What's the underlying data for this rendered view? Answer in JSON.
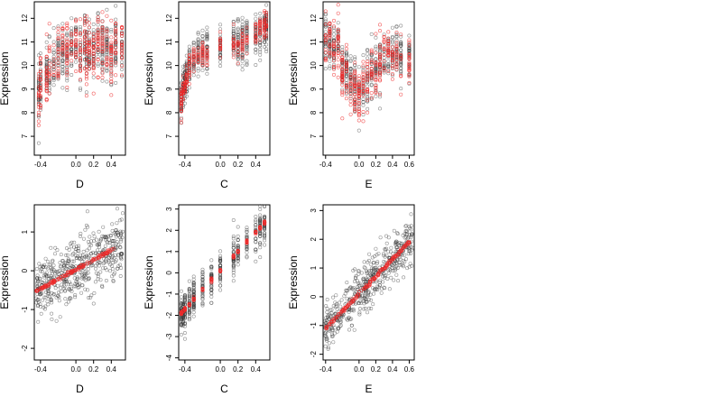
{
  "colors": {
    "observed": "#333333",
    "fitted": "#ee2a2a",
    "axis": "#000000"
  },
  "chart_data": [
    {
      "type": "scatter",
      "xlabel": "D",
      "ylabel": "Expression",
      "xlim": [
        -0.47,
        0.56
      ],
      "ylim": [
        6.2,
        12.7
      ],
      "xticks": [
        -0.4,
        0.0,
        0.2,
        0.4
      ],
      "xtick_labels": [
        "-0.4",
        "0.0",
        "0.2",
        "0.4"
      ],
      "yticks": [
        7,
        8,
        9,
        10,
        11,
        12
      ],
      "ytick_labels": [
        "7",
        "8",
        "9",
        "10",
        "11",
        "12"
      ],
      "series": [
        {
          "role": "observed",
          "x_levels": [
            -0.42,
            -0.4,
            -0.33,
            -0.3,
            -0.25,
            -0.2,
            -0.15,
            -0.1,
            -0.05,
            0.0,
            0.05,
            0.1,
            0.12,
            0.15,
            0.2,
            0.25,
            0.3,
            0.35,
            0.4,
            0.45,
            0.52
          ],
          "y_center": [
            8.8,
            9.2,
            9.6,
            9.8,
            10.0,
            10.3,
            10.5,
            10.4,
            10.7,
            10.9,
            10.5,
            11.0,
            10.6,
            10.8,
            10.6,
            10.9,
            10.8,
            10.7,
            10.5,
            10.8,
            10.9
          ],
          "y_spread": 1.2,
          "count": 520
        },
        {
          "role": "fitted",
          "x_levels": [
            -0.42,
            -0.4,
            -0.33,
            -0.3,
            -0.25,
            -0.2,
            -0.15,
            -0.1,
            -0.05,
            0.0,
            0.05,
            0.1,
            0.12,
            0.15,
            0.2,
            0.25,
            0.3,
            0.35,
            0.4,
            0.45,
            0.52
          ],
          "y_center": [
            8.6,
            9.4,
            9.4,
            9.8,
            10.0,
            10.4,
            10.6,
            10.3,
            10.8,
            11.0,
            10.4,
            11.0,
            10.5,
            10.9,
            10.6,
            11.0,
            10.8,
            10.8,
            10.4,
            10.9,
            10.9
          ],
          "y_spread": 1.25,
          "count": 380
        }
      ]
    },
    {
      "type": "scatter",
      "xlabel": "C",
      "ylabel": "Expression",
      "xlim": [
        -0.47,
        0.56
      ],
      "ylim": [
        6.2,
        12.7
      ],
      "xticks": [
        -0.4,
        0.0,
        0.2,
        0.4
      ],
      "xtick_labels": [
        "-0.4",
        "0.0",
        "0.2",
        "0.4"
      ],
      "yticks": [
        7,
        8,
        9,
        10,
        11,
        12
      ],
      "ytick_labels": [
        "7",
        "8",
        "9",
        "10",
        "11",
        "12"
      ],
      "series": [
        {
          "role": "observed",
          "x_levels": [
            -0.44,
            -0.42,
            -0.4,
            -0.38,
            -0.35,
            -0.3,
            -0.25,
            -0.2,
            -0.15,
            0.0,
            0.15,
            0.2,
            0.25,
            0.3,
            0.4,
            0.45,
            0.5,
            0.52
          ],
          "y_center": [
            8.6,
            9.0,
            9.3,
            9.6,
            9.9,
            10.2,
            10.4,
            10.5,
            10.6,
            10.8,
            11.0,
            10.9,
            11.0,
            11.1,
            11.2,
            11.4,
            11.5,
            11.6
          ],
          "y_spread": 0.9,
          "count": 520
        },
        {
          "role": "fitted",
          "x_levels": [
            -0.44,
            -0.42,
            -0.4,
            -0.38,
            -0.35,
            -0.3,
            -0.25,
            -0.2,
            -0.15,
            0.0,
            0.15,
            0.2,
            0.25,
            0.3,
            0.4,
            0.45,
            0.5,
            0.52
          ],
          "y_center": [
            8.5,
            8.9,
            9.2,
            9.6,
            9.9,
            10.3,
            10.5,
            10.5,
            10.6,
            10.9,
            11.0,
            10.9,
            11.0,
            11.1,
            11.3,
            11.5,
            11.6,
            11.7
          ],
          "y_spread": 0.55,
          "count": 280
        }
      ]
    },
    {
      "type": "scatter",
      "xlabel": "E",
      "ylabel": "Expression",
      "xlim": [
        -0.43,
        0.66
      ],
      "ylim": [
        6.2,
        12.7
      ],
      "xticks": [
        -0.4,
        0.0,
        0.2,
        0.4,
        0.6
      ],
      "xtick_labels": [
        "-0.4",
        "0.0",
        "0.2",
        "0.4",
        "0.6"
      ],
      "yticks": [
        7,
        8,
        9,
        10,
        11,
        12
      ],
      "ytick_labels": [
        "7",
        "8",
        "9",
        "10",
        "11",
        "12"
      ],
      "series": [
        {
          "role": "observed",
          "x_levels": [
            -0.4,
            -0.35,
            -0.3,
            -0.25,
            -0.2,
            -0.15,
            -0.1,
            -0.05,
            0.0,
            0.05,
            0.1,
            0.15,
            0.2,
            0.25,
            0.3,
            0.35,
            0.4,
            0.45,
            0.5,
            0.6
          ],
          "y_center": [
            11.2,
            11.0,
            10.6,
            10.9,
            9.8,
            9.6,
            9.4,
            9.2,
            8.9,
            9.0,
            9.3,
            9.6,
            9.8,
            10.0,
            10.3,
            10.6,
            10.4,
            10.5,
            10.3,
            10.2
          ],
          "y_spread": 1.1,
          "count": 520
        },
        {
          "role": "fitted",
          "x_levels": [
            -0.4,
            -0.35,
            -0.3,
            -0.25,
            -0.2,
            -0.15,
            -0.1,
            -0.05,
            0.0,
            0.05,
            0.1,
            0.15,
            0.2,
            0.25,
            0.3,
            0.35,
            0.4,
            0.45,
            0.5,
            0.6
          ],
          "y_center": [
            11.3,
            11.1,
            10.7,
            11.0,
            9.7,
            9.5,
            9.3,
            9.1,
            8.8,
            9.1,
            9.2,
            9.7,
            9.9,
            10.1,
            10.4,
            10.7,
            10.4,
            10.6,
            10.3,
            10.2
          ],
          "y_spread": 1.15,
          "count": 380
        }
      ]
    },
    {
      "type": "scatter",
      "xlabel": "D",
      "ylabel": "Expression",
      "xlim": [
        -0.47,
        0.56
      ],
      "ylim": [
        -2.3,
        1.7
      ],
      "xticks": [
        -0.4,
        0.0,
        0.2,
        0.4
      ],
      "xtick_labels": [
        "-0.4",
        "0.0",
        "0.2",
        "0.4"
      ],
      "yticks": [
        -2,
        -1,
        0,
        1
      ],
      "ytick_labels": [
        "-2",
        "-1",
        "0",
        "1"
      ],
      "series": [
        {
          "role": "observed",
          "line": {
            "intercept": 0.03,
            "slope": 1.25
          },
          "x_range": [
            -0.45,
            0.53
          ],
          "y_spread": 0.75,
          "count": 520
        },
        {
          "role": "fitted",
          "line": {
            "intercept": 0.03,
            "slope": 1.25
          },
          "x_range": [
            -0.45,
            0.43
          ],
          "y_spread": 0.04,
          "count": 150
        }
      ]
    },
    {
      "type": "scatter",
      "xlabel": "C",
      "ylabel": "Expression",
      "xlim": [
        -0.47,
        0.56
      ],
      "ylim": [
        -4.1,
        3.2
      ],
      "xticks": [
        -0.4,
        0.0,
        0.2,
        0.4
      ],
      "xtick_labels": [
        "-0.4",
        "0.0",
        "0.2",
        "0.4"
      ],
      "yticks": [
        -4,
        -3,
        -2,
        -1,
        0,
        1,
        2,
        3
      ],
      "ytick_labels": [
        "-4",
        "-3",
        "-2",
        "-1",
        "0",
        "1",
        "2",
        "3"
      ],
      "series": [
        {
          "role": "observed",
          "x_levels": [
            -0.44,
            -0.42,
            -0.4,
            -0.35,
            -0.3,
            -0.2,
            -0.1,
            0.0,
            0.15,
            0.2,
            0.3,
            0.4,
            0.45,
            0.5
          ],
          "line": {
            "intercept": 0.1,
            "slope": 4.5
          },
          "y_spread": 0.9,
          "count": 480
        },
        {
          "role": "fitted",
          "x_levels": [
            -0.44,
            -0.42,
            -0.4,
            -0.35,
            -0.3,
            -0.2,
            -0.1,
            0.0,
            0.15,
            0.2,
            0.3,
            0.4,
            0.45,
            0.5
          ],
          "line": {
            "intercept": 0.1,
            "slope": 4.5
          },
          "y_spread": 0.08,
          "count": 180
        }
      ]
    },
    {
      "type": "scatter",
      "xlabel": "E",
      "ylabel": "Expression",
      "xlim": [
        -0.43,
        0.66
      ],
      "ylim": [
        -2.2,
        3.2
      ],
      "xticks": [
        -0.4,
        0.0,
        0.2,
        0.4,
        0.6
      ],
      "xtick_labels": [
        "-0.4",
        "0.0",
        "0.2",
        "0.4",
        "0.6"
      ],
      "yticks": [
        -2,
        -1,
        0,
        1,
        2,
        3
      ],
      "ytick_labels": [
        "-2",
        "-1",
        "0",
        "1",
        "2",
        "3"
      ],
      "series": [
        {
          "role": "observed",
          "line": {
            "intercept": 0.1,
            "slope": 3.0
          },
          "x_range": [
            -0.41,
            0.64
          ],
          "y_spread": 0.8,
          "count": 520
        },
        {
          "role": "fitted",
          "line": {
            "intercept": 0.1,
            "slope": 3.0
          },
          "x_range": [
            -0.41,
            0.6
          ],
          "y_spread": 0.06,
          "count": 180
        }
      ]
    }
  ]
}
